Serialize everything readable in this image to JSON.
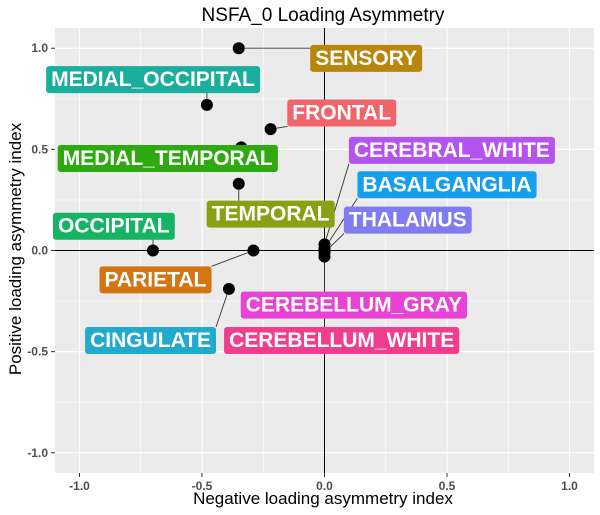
{
  "chart_data": {
    "type": "scatter",
    "title": "NSFA_0 Loading Asymmetry",
    "xlabel": "Negative loading asymmetry index",
    "ylabel": "Positive loading asymmetry index",
    "xlim": [
      -1.1,
      1.1
    ],
    "ylim": [
      -1.1,
      1.1
    ],
    "x_ticks": [
      {
        "value": -1.0,
        "label": "-1.0"
      },
      {
        "value": -0.5,
        "label": "-0.5"
      },
      {
        "value": 0.0,
        "label": "0.0"
      },
      {
        "value": 0.5,
        "label": "0.5"
      },
      {
        "value": 1.0,
        "label": "1.0"
      }
    ],
    "y_ticks": [
      {
        "value": -1.0,
        "label": "-1.0"
      },
      {
        "value": -0.5,
        "label": "-0.5"
      },
      {
        "value": 0.0,
        "label": "0.0"
      },
      {
        "value": 0.5,
        "label": "0.5"
      },
      {
        "value": 1.0,
        "label": "1.0"
      }
    ],
    "grid": true,
    "background": "#ebebeb",
    "points": [
      {
        "name": "SENSORY",
        "x": -0.35,
        "y": 1.0,
        "color": "#b8860b",
        "label_x": 0.17,
        "label_y": 0.955
      },
      {
        "name": "MEDIAL_OCCIPITAL",
        "x": -0.48,
        "y": 0.72,
        "color": "#1aae9c",
        "label_x": -0.7,
        "label_y": 0.85
      },
      {
        "name": "FRONTAL",
        "x": -0.22,
        "y": 0.6,
        "color": "#f0646a",
        "label_x": 0.07,
        "label_y": 0.685
      },
      {
        "name": "MEDIAL_TEMPORAL",
        "x": -0.34,
        "y": 0.51,
        "color": "#2eaa10",
        "label_x": -0.64,
        "label_y": 0.46
      },
      {
        "name": "TEMPORAL",
        "x": -0.35,
        "y": 0.33,
        "color": "#8aa012",
        "label_x": -0.22,
        "label_y": 0.185
      },
      {
        "name": "OCCIPITAL",
        "x": -0.7,
        "y": 0.0,
        "color": "#15b463",
        "label_x": -0.86,
        "label_y": 0.125
      },
      {
        "name": "PARIETAL",
        "x": -0.29,
        "y": 0.0,
        "color": "#d37512",
        "label_x": -0.69,
        "label_y": -0.14
      },
      {
        "name": "CINGULATE",
        "x": -0.39,
        "y": -0.19,
        "color": "#21a9ce",
        "label_x": -0.71,
        "label_y": -0.44
      },
      {
        "name": "CEREBRAL_WHITE",
        "x": 0.0,
        "y": 0.03,
        "color": "#b553ee",
        "label_x": 0.52,
        "label_y": 0.5
      },
      {
        "name": "BASALGANGLIA",
        "x": 0.0,
        "y": 0.01,
        "color": "#169fed",
        "label_x": 0.5,
        "label_y": 0.33
      },
      {
        "name": "THALAMUS",
        "x": 0.0,
        "y": -0.01,
        "color": "#7e7cf0",
        "label_x": 0.34,
        "label_y": 0.155
      },
      {
        "name": "CEREBELLUM_GRAY",
        "x": 0.0,
        "y": 0.0,
        "color": "#ea41d6",
        "label_x": 0.12,
        "label_y": -0.265
      },
      {
        "name": "CEREBELLUM_WHITE",
        "x": 0.0,
        "y": -0.03,
        "color": "#ee3e8d",
        "label_x": 0.07,
        "label_y": -0.44
      }
    ]
  }
}
